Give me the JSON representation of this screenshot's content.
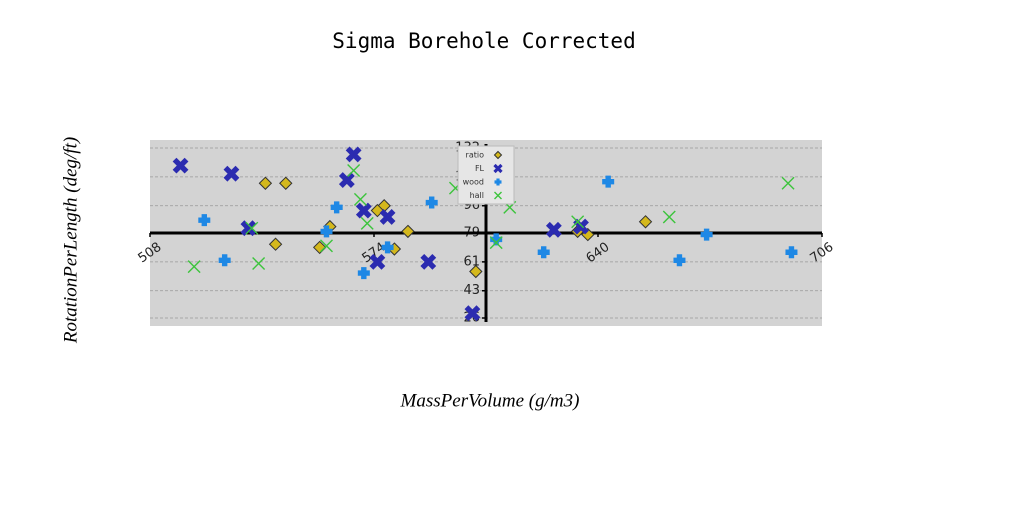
{
  "chart_data": {
    "type": "scatter",
    "title": "Sigma Borehole Corrected",
    "xlabel": "MassPerVolume (g/m3)",
    "ylabel": "RotationPerLength (deg/ft)",
    "xlim": [
      508,
      706
    ],
    "ylim": [
      26,
      132
    ],
    "xticks": [
      508,
      574,
      640,
      706
    ],
    "yticks": [
      26,
      43,
      61,
      79,
      96,
      114,
      132
    ],
    "grid": true,
    "legend": "upper center",
    "series": [
      {
        "name": "ratio",
        "color": "#d4b81c",
        "marker": "diamond",
        "x": [
          542,
          548,
          577,
          575,
          561,
          584,
          545,
          558,
          580,
          604,
          634,
          637,
          654
        ],
        "values": [
          110,
          110,
          96,
          93,
          83,
          80,
          72,
          70,
          69,
          55,
          80,
          78,
          86
        ]
      },
      {
        "name": "FL",
        "color": "#2b2bb0",
        "marker": "X",
        "x": [
          517,
          532,
          568,
          566,
          571,
          578,
          537,
          575,
          590,
          603,
          627,
          635
        ],
        "values": [
          121,
          116,
          128,
          112,
          93,
          89,
          82,
          61,
          61,
          29,
          81,
          83
        ]
      },
      {
        "name": "wood",
        "color": "#1e88e5",
        "marker": "plus",
        "x": [
          524,
          530,
          563,
          560,
          578,
          591,
          571,
          610,
          624,
          643,
          664,
          672,
          697
        ],
        "values": [
          87,
          62,
          95,
          80,
          70,
          98,
          54,
          75,
          67,
          111,
          62,
          78,
          67
        ]
      },
      {
        "name": "hall",
        "color": "#3cc43c",
        "marker": "x",
        "x": [
          521,
          540,
          538,
          560,
          568,
          570,
          572,
          598,
          614,
          610,
          634,
          661,
          696
        ],
        "values": [
          58,
          60,
          82,
          71,
          118,
          100,
          85,
          107,
          95,
          73,
          86,
          89,
          110
        ]
      }
    ]
  }
}
